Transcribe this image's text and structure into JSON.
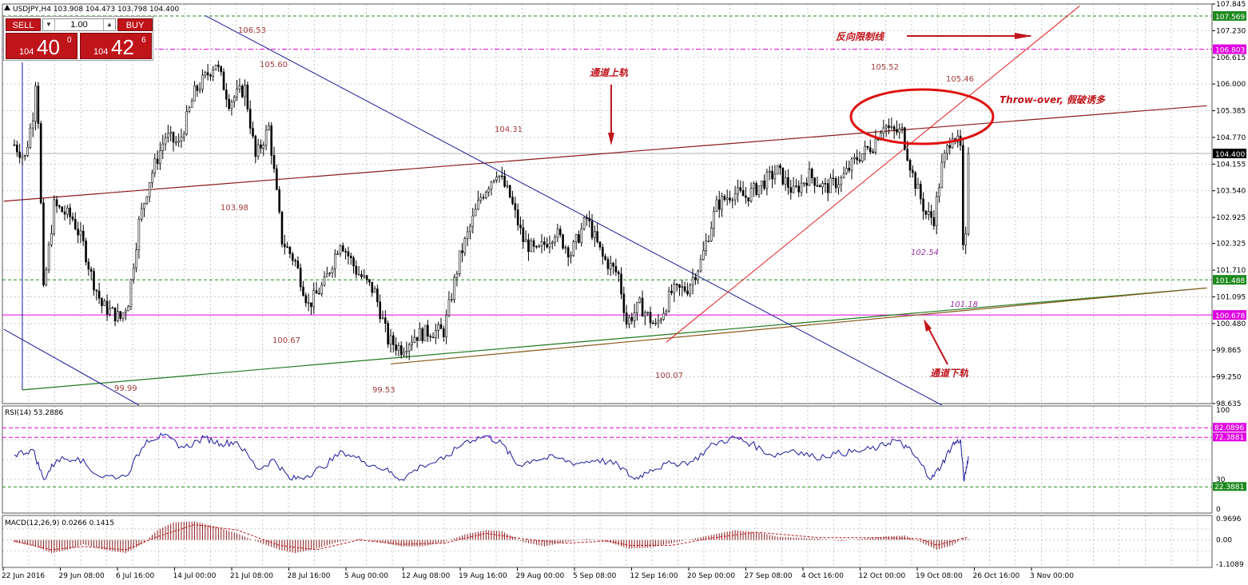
{
  "symbol_label": "USDJPY,H4  103.908 104.473 103.798 104.400",
  "trade_panel": {
    "sell_label": "SELL",
    "buy_label": "BUY",
    "volume": "1.00",
    "bid_small": "104",
    "bid_big": "40",
    "bid_sup": "0",
    "ask_small": "104",
    "ask_big": "42",
    "ask_sup": "6"
  },
  "colors": {
    "candle": "#000000",
    "channel_upper": "#8b1a1a",
    "channel_lower": "#1f7a1f",
    "downtrend": "#1a1a99",
    "uptrend": "#e02020",
    "magenta_level": "#e000e0",
    "green_level": "#1f8a1f",
    "annotation": "#c0141b",
    "price_label": "#a03a3a",
    "rsi_line": "#1a1a99",
    "macd_hist": "#8b1a1a",
    "macd_signal": "#c0141b"
  },
  "chart_data": [
    {
      "type": "candlestick",
      "symbol": "USDJPY",
      "timeframe": "H4",
      "ylim": [
        98.635,
        107.845
      ],
      "y_ticks": [
        "107.845",
        "107.230",
        "106.615",
        "106.000",
        "105.385",
        "104.770",
        "104.155",
        "103.540",
        "102.925",
        "102.325",
        "101.710",
        "101.095",
        "100.480",
        "99.865",
        "99.250",
        "98.635"
      ],
      "x_ticks": [
        "22 Jun 2016",
        "29 Jun 08:00",
        "6 Jul 16:00",
        "14 Jul 00:00",
        "21 Jul 08:00",
        "28 Jul 16:00",
        "5 Aug 00:00",
        "12 Aug 08:00",
        "19 Aug 16:00",
        "29 Aug 00:00",
        "5 Sep 08:00",
        "12 Sep 16:00",
        "20 Sep 00:00",
        "27 Sep 08:00",
        "4 Oct 16:00",
        "12 Oct 00:00",
        "19 Oct 08:00",
        "26 Oct 16:00",
        "3 Nov 00:00"
      ],
      "close_path": [
        {
          "x": 0.0,
          "y": 104.6
        },
        {
          "x": 0.2,
          "y": 104.3
        },
        {
          "x": 0.35,
          "y": 105.3
        },
        {
          "x": 0.42,
          "y": 106.4
        },
        {
          "x": 0.55,
          "y": 101.2
        },
        {
          "x": 0.75,
          "y": 103.2
        },
        {
          "x": 1.1,
          "y": 102.9
        },
        {
          "x": 1.3,
          "y": 102.3
        },
        {
          "x": 1.45,
          "y": 101.6
        },
        {
          "x": 1.65,
          "y": 100.9
        },
        {
          "x": 2.0,
          "y": 100.6
        },
        {
          "x": 2.15,
          "y": 101.0
        },
        {
          "x": 2.35,
          "y": 102.8
        },
        {
          "x": 2.55,
          "y": 103.8
        },
        {
          "x": 2.85,
          "y": 104.8
        },
        {
          "x": 3.1,
          "y": 104.6
        },
        {
          "x": 3.4,
          "y": 105.8
        },
        {
          "x": 3.8,
          "y": 106.5
        },
        {
          "x": 4.05,
          "y": 105.6
        },
        {
          "x": 4.35,
          "y": 105.9
        },
        {
          "x": 4.55,
          "y": 104.3
        },
        {
          "x": 4.8,
          "y": 105.0
        },
        {
          "x": 5.05,
          "y": 102.4
        },
        {
          "x": 5.3,
          "y": 101.9
        },
        {
          "x": 5.55,
          "y": 100.9
        },
        {
          "x": 5.85,
          "y": 101.4
        },
        {
          "x": 6.15,
          "y": 102.4
        },
        {
          "x": 6.45,
          "y": 101.7
        },
        {
          "x": 6.8,
          "y": 101.2
        },
        {
          "x": 7.05,
          "y": 100.1
        },
        {
          "x": 7.3,
          "y": 99.9
        },
        {
          "x": 7.55,
          "y": 100.2
        },
        {
          "x": 7.85,
          "y": 100.3
        },
        {
          "x": 8.1,
          "y": 100.3
        },
        {
          "x": 8.4,
          "y": 102.0
        },
        {
          "x": 8.8,
          "y": 103.4
        },
        {
          "x": 9.1,
          "y": 104.0
        },
        {
          "x": 9.35,
          "y": 103.4
        },
        {
          "x": 9.6,
          "y": 102.4
        },
        {
          "x": 9.85,
          "y": 102.1
        },
        {
          "x": 10.2,
          "y": 102.6
        },
        {
          "x": 10.5,
          "y": 102.1
        },
        {
          "x": 10.8,
          "y": 102.9
        },
        {
          "x": 11.1,
          "y": 102.0
        },
        {
          "x": 11.4,
          "y": 101.6
        },
        {
          "x": 11.55,
          "y": 100.5
        },
        {
          "x": 11.8,
          "y": 100.9
        },
        {
          "x": 12.1,
          "y": 100.4
        },
        {
          "x": 12.4,
          "y": 101.2
        },
        {
          "x": 12.7,
          "y": 101.3
        },
        {
          "x": 12.95,
          "y": 101.9
        },
        {
          "x": 13.25,
          "y": 103.2
        },
        {
          "x": 13.55,
          "y": 103.5
        },
        {
          "x": 13.8,
          "y": 103.4
        },
        {
          "x": 14.1,
          "y": 103.7
        },
        {
          "x": 14.4,
          "y": 104.0
        },
        {
          "x": 14.7,
          "y": 103.5
        },
        {
          "x": 15.0,
          "y": 103.9
        },
        {
          "x": 15.3,
          "y": 103.6
        },
        {
          "x": 15.6,
          "y": 103.8
        },
        {
          "x": 15.9,
          "y": 104.3
        },
        {
          "x": 16.2,
          "y": 104.6
        },
        {
          "x": 16.4,
          "y": 105.1
        },
        {
          "x": 16.55,
          "y": 104.9
        },
        {
          "x": 16.75,
          "y": 104.9
        },
        {
          "x": 16.95,
          "y": 103.9
        },
        {
          "x": 17.2,
          "y": 103.0
        },
        {
          "x": 17.35,
          "y": 102.9
        },
        {
          "x": 17.5,
          "y": 104.1
        },
        {
          "x": 17.7,
          "y": 104.9
        },
        {
          "x": 17.85,
          "y": 104.5
        },
        {
          "x": 17.92,
          "y": 101.2
        },
        {
          "x": 18.0,
          "y": 104.4
        }
      ]
    },
    {
      "type": "line",
      "title": "RSI(14) 53.2886",
      "levels": [
        82.0896,
        72.3881,
        22.3881
      ],
      "level_labels": [
        "82.0896",
        "72.3881",
        "22.3881"
      ],
      "y_ticks": [
        "100",
        "30",
        "0"
      ],
      "ylim": [
        0,
        100
      ],
      "values": [
        {
          "x": 0.0,
          "y": 55
        },
        {
          "x": 0.35,
          "y": 60
        },
        {
          "x": 0.55,
          "y": 30
        },
        {
          "x": 0.8,
          "y": 50
        },
        {
          "x": 1.2,
          "y": 52
        },
        {
          "x": 1.6,
          "y": 33
        },
        {
          "x": 2.1,
          "y": 33
        },
        {
          "x": 2.5,
          "y": 70
        },
        {
          "x": 2.8,
          "y": 74
        },
        {
          "x": 3.2,
          "y": 62
        },
        {
          "x": 3.6,
          "y": 72
        },
        {
          "x": 3.9,
          "y": 66
        },
        {
          "x": 4.2,
          "y": 68
        },
        {
          "x": 4.6,
          "y": 40
        },
        {
          "x": 4.9,
          "y": 50
        },
        {
          "x": 5.2,
          "y": 30
        },
        {
          "x": 5.5,
          "y": 33
        },
        {
          "x": 5.8,
          "y": 42
        },
        {
          "x": 6.2,
          "y": 58
        },
        {
          "x": 6.6,
          "y": 48
        },
        {
          "x": 7.0,
          "y": 40
        },
        {
          "x": 7.3,
          "y": 30
        },
        {
          "x": 7.7,
          "y": 44
        },
        {
          "x": 8.1,
          "y": 50
        },
        {
          "x": 8.5,
          "y": 68
        },
        {
          "x": 8.9,
          "y": 74
        },
        {
          "x": 9.2,
          "y": 66
        },
        {
          "x": 9.5,
          "y": 44
        },
        {
          "x": 9.8,
          "y": 50
        },
        {
          "x": 10.2,
          "y": 52
        },
        {
          "x": 10.6,
          "y": 46
        },
        {
          "x": 11.0,
          "y": 50
        },
        {
          "x": 11.4,
          "y": 44
        },
        {
          "x": 11.7,
          "y": 30
        },
        {
          "x": 12.0,
          "y": 40
        },
        {
          "x": 12.4,
          "y": 46
        },
        {
          "x": 12.8,
          "y": 48
        },
        {
          "x": 13.2,
          "y": 66
        },
        {
          "x": 13.6,
          "y": 72
        },
        {
          "x": 13.9,
          "y": 66
        },
        {
          "x": 14.3,
          "y": 54
        },
        {
          "x": 14.7,
          "y": 60
        },
        {
          "x": 15.1,
          "y": 52
        },
        {
          "x": 15.5,
          "y": 56
        },
        {
          "x": 15.9,
          "y": 58
        },
        {
          "x": 16.3,
          "y": 62
        },
        {
          "x": 16.6,
          "y": 70
        },
        {
          "x": 16.85,
          "y": 62
        },
        {
          "x": 17.1,
          "y": 46
        },
        {
          "x": 17.3,
          "y": 30
        },
        {
          "x": 17.5,
          "y": 45
        },
        {
          "x": 17.7,
          "y": 65
        },
        {
          "x": 17.85,
          "y": 70
        },
        {
          "x": 17.92,
          "y": 28
        },
        {
          "x": 18.0,
          "y": 53.3
        }
      ]
    },
    {
      "type": "bar",
      "title": "MACD(12,26,9) 0.0266 0.1415",
      "y_ticks": [
        "0.9696",
        "0.00",
        "-1.1089"
      ],
      "ylim": [
        -1.1089,
        0.9696
      ],
      "histogram": [
        {
          "x": 0.0,
          "y": -0.1
        },
        {
          "x": 0.4,
          "y": -0.3
        },
        {
          "x": 0.7,
          "y": -0.6
        },
        {
          "x": 1.0,
          "y": -0.45
        },
        {
          "x": 1.3,
          "y": -0.2
        },
        {
          "x": 1.7,
          "y": -0.45
        },
        {
          "x": 2.1,
          "y": -0.6
        },
        {
          "x": 2.4,
          "y": -0.2
        },
        {
          "x": 2.7,
          "y": 0.45
        },
        {
          "x": 3.0,
          "y": 0.8
        },
        {
          "x": 3.4,
          "y": 0.85
        },
        {
          "x": 3.8,
          "y": 0.6
        },
        {
          "x": 4.2,
          "y": 0.3
        },
        {
          "x": 4.6,
          "y": -0.1
        },
        {
          "x": 5.0,
          "y": -0.45
        },
        {
          "x": 5.3,
          "y": -0.6
        },
        {
          "x": 5.7,
          "y": -0.4
        },
        {
          "x": 6.1,
          "y": -0.1
        },
        {
          "x": 6.5,
          "y": 0.05
        },
        {
          "x": 6.9,
          "y": -0.1
        },
        {
          "x": 7.3,
          "y": -0.3
        },
        {
          "x": 7.7,
          "y": -0.3
        },
        {
          "x": 8.1,
          "y": -0.1
        },
        {
          "x": 8.5,
          "y": 0.25
        },
        {
          "x": 8.9,
          "y": 0.45
        },
        {
          "x": 9.2,
          "y": 0.4
        },
        {
          "x": 9.6,
          "y": -0.1
        },
        {
          "x": 10.0,
          "y": -0.3
        },
        {
          "x": 10.4,
          "y": -0.1
        },
        {
          "x": 10.8,
          "y": 0.05
        },
        {
          "x": 11.2,
          "y": -0.1
        },
        {
          "x": 11.6,
          "y": -0.4
        },
        {
          "x": 12.0,
          "y": -0.35
        },
        {
          "x": 12.4,
          "y": -0.15
        },
        {
          "x": 12.8,
          "y": 0.05
        },
        {
          "x": 13.2,
          "y": 0.25
        },
        {
          "x": 13.6,
          "y": 0.45
        },
        {
          "x": 14.0,
          "y": 0.35
        },
        {
          "x": 14.4,
          "y": 0.15
        },
        {
          "x": 14.8,
          "y": 0.1
        },
        {
          "x": 15.2,
          "y": 0.05
        },
        {
          "x": 15.6,
          "y": -0.05
        },
        {
          "x": 16.0,
          "y": 0.05
        },
        {
          "x": 16.4,
          "y": 0.15
        },
        {
          "x": 16.8,
          "y": 0.2
        },
        {
          "x": 17.1,
          "y": -0.1
        },
        {
          "x": 17.4,
          "y": -0.45
        },
        {
          "x": 17.7,
          "y": -0.25
        },
        {
          "x": 17.9,
          "y": 0.1
        },
        {
          "x": 18.0,
          "y": 0.03
        }
      ],
      "signal": [
        {
          "x": 0.0,
          "y": -0.05
        },
        {
          "x": 0.7,
          "y": -0.45
        },
        {
          "x": 1.3,
          "y": -0.3
        },
        {
          "x": 2.1,
          "y": -0.45
        },
        {
          "x": 2.7,
          "y": 0.15
        },
        {
          "x": 3.4,
          "y": 0.7
        },
        {
          "x": 4.2,
          "y": 0.45
        },
        {
          "x": 5.0,
          "y": -0.25
        },
        {
          "x": 5.7,
          "y": -0.45
        },
        {
          "x": 6.5,
          "y": 0.0
        },
        {
          "x": 7.3,
          "y": -0.2
        },
        {
          "x": 8.1,
          "y": -0.15
        },
        {
          "x": 8.9,
          "y": 0.3
        },
        {
          "x": 9.6,
          "y": 0.05
        },
        {
          "x": 10.4,
          "y": -0.15
        },
        {
          "x": 11.2,
          "y": -0.05
        },
        {
          "x": 11.6,
          "y": -0.25
        },
        {
          "x": 12.4,
          "y": -0.25
        },
        {
          "x": 13.2,
          "y": 0.1
        },
        {
          "x": 14.0,
          "y": 0.35
        },
        {
          "x": 15.2,
          "y": 0.1
        },
        {
          "x": 16.4,
          "y": 0.1
        },
        {
          "x": 17.1,
          "y": 0.05
        },
        {
          "x": 17.4,
          "y": -0.25
        },
        {
          "x": 18.0,
          "y": 0.14
        }
      ]
    }
  ],
  "price_badges": [
    "107.569",
    "106.803",
    "104.400",
    "101.488",
    "100.678"
  ],
  "price_levels": [
    107.569,
    106.803,
    104.4,
    101.488,
    100.678
  ],
  "swing_labels": [
    "106.53",
    "105.60",
    "103.98",
    "104.31",
    "100.67",
    "99.99",
    "99.53",
    "100.07",
    "105.52",
    "105.46",
    "102.54",
    "101.18"
  ],
  "annotations": {
    "reverse_limit": "反向限制线",
    "channel_upper": "通道上轨",
    "channel_lower": "通道下轨",
    "throwover": "Throw-over, 假破诱多"
  }
}
